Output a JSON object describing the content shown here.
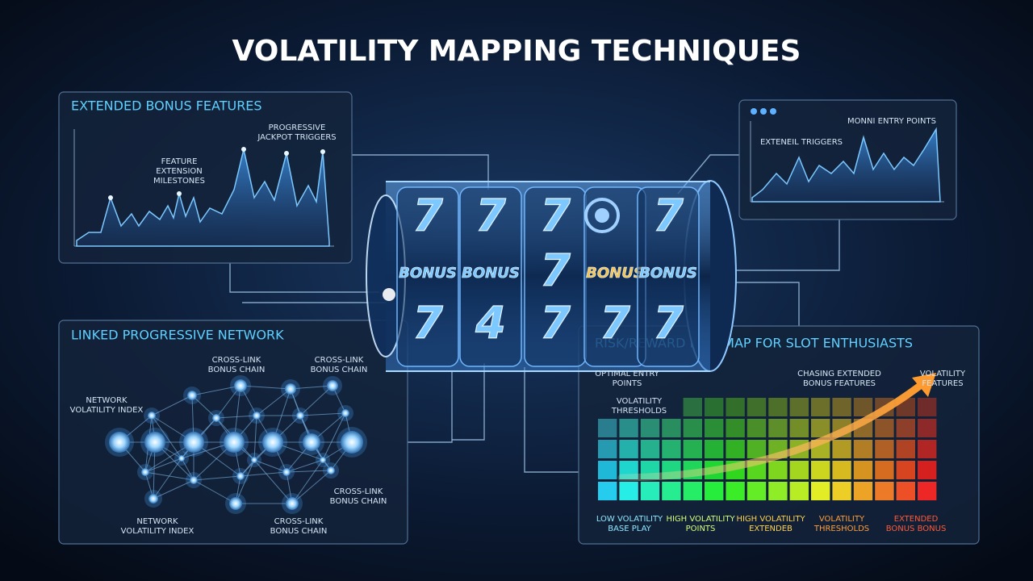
{
  "title": "VOLATILITY MAPPING TECHNIQUES",
  "bonus_panel": {
    "title": "EXTENDED BONUS FEATURES",
    "labels": [
      [
        "PROGRESSIVE",
        "JACKPOT TRIGGERS"
      ],
      [
        "FEATURE",
        "EXTENSION",
        "MILESTONES"
      ]
    ]
  },
  "entry_panel": {
    "labels": [
      "MONNI ENTRY POINTS",
      "EXTENEIL TRIGGERS"
    ]
  },
  "reels": [
    [
      "7",
      "BONUS",
      "7"
    ],
    [
      "7",
      "BONUS",
      "4"
    ],
    [
      "7",
      "7",
      "7"
    ],
    [
      "BONUS",
      "7"
    ],
    [
      "7",
      "BONUS",
      "7"
    ]
  ],
  "network_panel": {
    "title": "LINKED PROGRESSIVE NETWORK",
    "labels": [
      [
        "CROSS-LINK",
        "BONUS CHAIN"
      ],
      [
        "CROSS-LINK",
        "BONUS CHAIN"
      ],
      [
        "NETWORK",
        "VOLATILITY INDEX"
      ],
      [
        "CROSS-LINK",
        "BONUS CHAIN"
      ],
      [
        "NETWORK",
        "VOLATILITY INDEX"
      ],
      [
        "CROSS-LINK",
        "BONUS CHAIN"
      ]
    ]
  },
  "heatmap_panel": {
    "title": "RISK/REWARD HEATMAP FOR SLOT ENTHUSIASTS",
    "top_labels": [
      [
        "OPTIMAL ENTRY",
        "POINTS"
      ],
      [
        "VOLATILITY",
        "THRESHOLDS"
      ],
      [
        "CHASING EXTENDED",
        "BONUS FEATURES"
      ],
      [
        "VOLATILITY",
        "FEATURES"
      ]
    ],
    "bottom_labels": [
      [
        "LOW VOLATILITY",
        "BASE PLAY"
      ],
      [
        "HIGH VOLATILITY",
        "POINTS"
      ],
      [
        "HIGH VOLATILITY",
        "EXTENDEB"
      ],
      [
        "VOLATILITY",
        "THRESHOLDS"
      ],
      [
        "EXTENDED",
        "BONUS BONUS"
      ]
    ]
  }
}
